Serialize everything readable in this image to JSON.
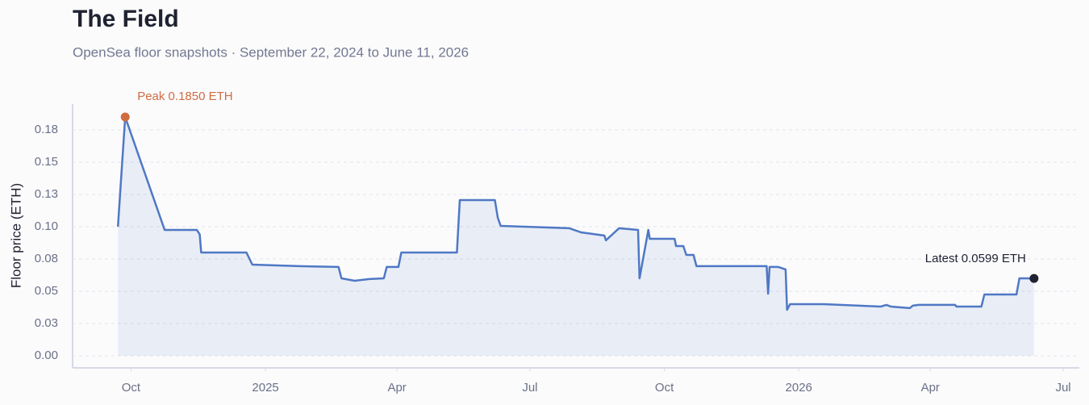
{
  "chart_data": {
    "type": "line",
    "title": "The Field",
    "subtitle": "OpenSea floor snapshots · September 22, 2024 to June 11, 2026",
    "y_label": "Floor price (ETH)",
    "color": "#4f78c4",
    "grid": true,
    "x": [
      "2024-09-22",
      "2024-09-27",
      "2024-10-24",
      "2024-11-15",
      "2024-11-17",
      "2024-11-18",
      "2024-12-19",
      "2024-12-23",
      "2025-01-24",
      "2025-02-20",
      "2025-02-22",
      "2025-03-03",
      "2025-03-13",
      "2025-03-23",
      "2025-03-25",
      "2025-04-02",
      "2025-04-04",
      "2025-05-12",
      "2025-05-14",
      "2025-06-07",
      "2025-06-09",
      "2025-06-11",
      "2025-07-28",
      "2025-08-05",
      "2025-08-21",
      "2025-08-22",
      "2025-08-31",
      "2025-09-13",
      "2025-09-14",
      "2025-09-20",
      "2025-09-21",
      "2025-10-08",
      "2025-10-09",
      "2025-10-14",
      "2025-10-16",
      "2025-10-21",
      "2025-10-23",
      "2025-12-10",
      "2025-12-11",
      "2025-12-12",
      "2025-12-18",
      "2025-12-23",
      "2025-12-24",
      "2025-12-26",
      "2026-01-18",
      "2026-02-26",
      "2026-03-02",
      "2026-03-05",
      "2026-03-18",
      "2026-03-20",
      "2026-03-24",
      "2026-04-18",
      "2026-04-19",
      "2026-05-06",
      "2026-05-08",
      "2026-05-30",
      "2026-06-01",
      "2026-06-11"
    ],
    "series": [
      {
        "name": "Floor price",
        "color": "#4f78c4",
        "values": [
          0.1,
          0.185,
          0.0975,
          0.0975,
          0.094,
          0.08,
          0.08,
          0.0706,
          0.0694,
          0.0688,
          0.06,
          0.0581,
          0.0594,
          0.06,
          0.0688,
          0.0688,
          0.08,
          0.08,
          0.1206,
          0.1206,
          0.1069,
          0.1006,
          0.0988,
          0.0956,
          0.0931,
          0.0894,
          0.0988,
          0.0975,
          0.06,
          0.0975,
          0.0906,
          0.0906,
          0.085,
          0.085,
          0.0781,
          0.0781,
          0.0694,
          0.0694,
          0.0481,
          0.0688,
          0.0688,
          0.0669,
          0.0356,
          0.04,
          0.04,
          0.0381,
          0.0394,
          0.0381,
          0.0369,
          0.0388,
          0.0394,
          0.0394,
          0.0381,
          0.0381,
          0.0475,
          0.0475,
          0.06,
          0.0599
        ]
      }
    ],
    "annotations": [
      {
        "text": "Peak 0.1850 ETH",
        "x": "2024-09-27",
        "y": 0.185
      },
      {
        "text": "Latest 0.0599 ETH",
        "x": "2026-06-11",
        "y": 0.0599
      }
    ],
    "xlim": [
      "2024-08-22",
      "2026-07-12"
    ],
    "xticks": [
      {
        "value": "2024-10-01",
        "label": "Oct"
      },
      {
        "value": "2025-01-01",
        "label": "2025"
      },
      {
        "value": "2025-04-01",
        "label": "Apr"
      },
      {
        "value": "2025-07-01",
        "label": "Jul"
      },
      {
        "value": "2025-10-01",
        "label": "Oct"
      },
      {
        "value": "2026-01-01",
        "label": "2026"
      },
      {
        "value": "2026-04-01",
        "label": "Apr"
      },
      {
        "value": "2026-07-01",
        "label": "Jul"
      }
    ],
    "ylim": [
      -0.0094,
      0.195
    ],
    "yticks": [
      {
        "value": 0,
        "label": "0.00"
      },
      {
        "value": 0.025,
        "label": "0.03"
      },
      0.05,
      {
        "value": 0.075,
        "label": "0.08"
      },
      {
        "value": 0.1,
        "label": "0.10"
      },
      {
        "value": 0.125,
        "label": "0.13"
      },
      0.15,
      {
        "value": 0.175,
        "label": "0.18"
      }
    ]
  }
}
